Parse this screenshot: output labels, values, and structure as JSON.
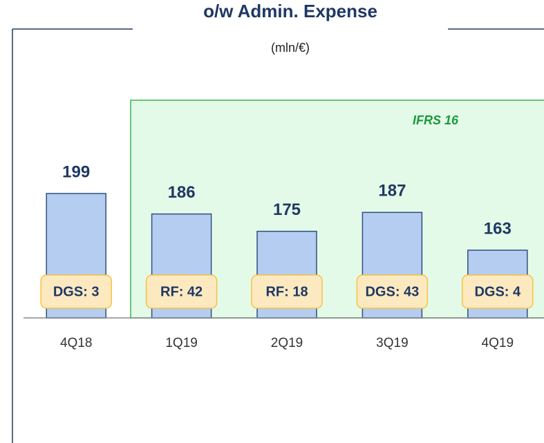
{
  "chart_data": {
    "type": "bar",
    "title": "o/w Admin. Expense",
    "subtitle": "(mln/€)",
    "categories": [
      "4Q18",
      "1Q19",
      "2Q19",
      "3Q19",
      "4Q19"
    ],
    "values": [
      199,
      186,
      175,
      187,
      163
    ],
    "bar_notes": [
      "DGS: 3",
      "RF: 42",
      "RF: 18",
      "DGS: 43",
      "DGS: 4"
    ],
    "annotation": "IFRS 16",
    "color": "#b4cdf0",
    "ylim": [
      120,
      260
    ]
  }
}
